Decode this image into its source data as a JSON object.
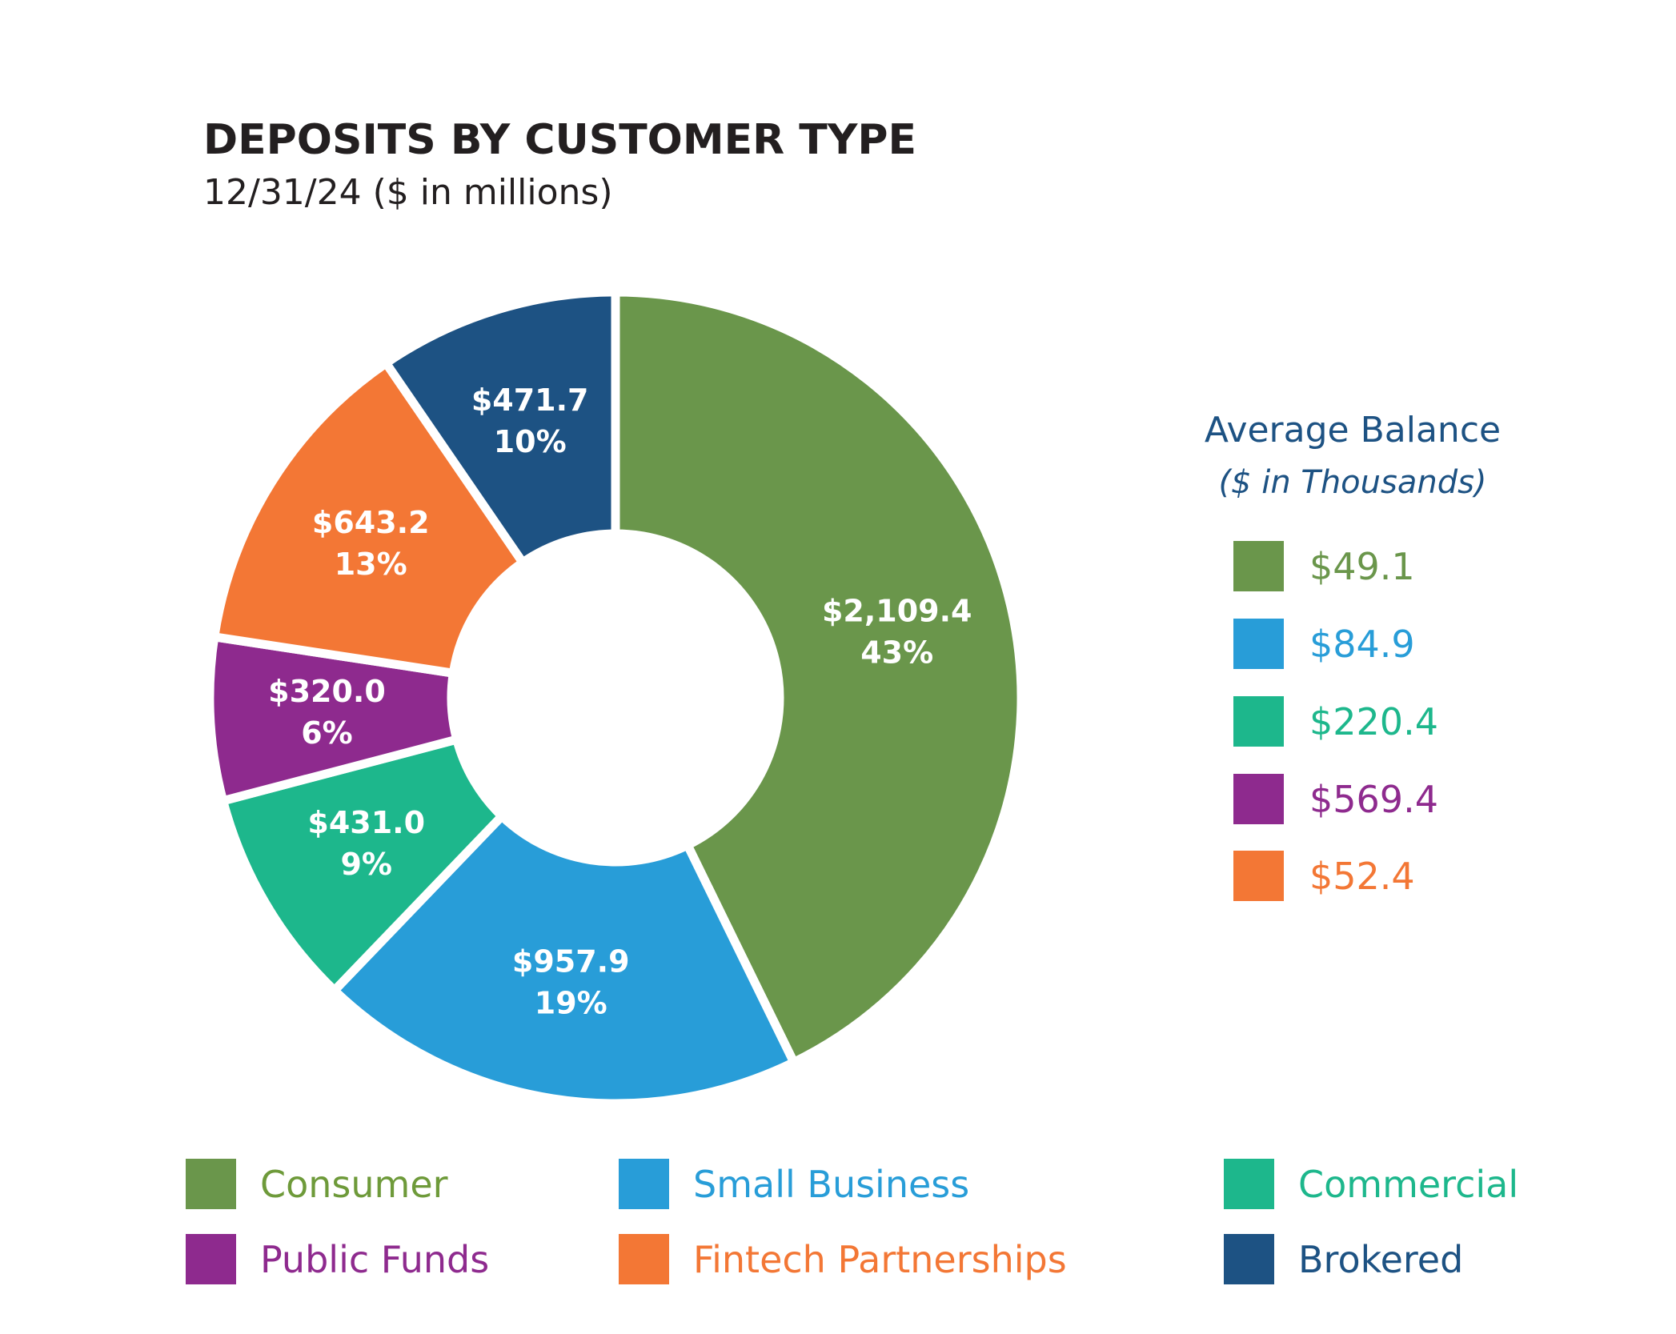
{
  "title": "DEPOSITS BY CUSTOMER TYPE",
  "subtitle": "12/31/24 ($ in millions)",
  "chart_data": {
    "type": "pie",
    "variant": "donut",
    "title": "DEPOSITS BY CUSTOMER TYPE",
    "subtitle": "12/31/24 ($ in millions)",
    "start_angle": "12 o'clock, clockwise",
    "slices": [
      {
        "name": "Consumer",
        "value": 2109.4,
        "value_label": "$2,109.4",
        "percent_label": "43%",
        "color": "#6a964b",
        "text_color": "#6e9a3a"
      },
      {
        "name": "Small Business",
        "value": 957.9,
        "value_label": "$957.9",
        "percent_label": "19%",
        "color": "#289dd8",
        "text_color": "#289dd8"
      },
      {
        "name": "Commercial",
        "value": 431.0,
        "value_label": "$431.0",
        "percent_label": "9%",
        "color": "#1db78c",
        "text_color": "#1db78c"
      },
      {
        "name": "Public Funds",
        "value": 320.0,
        "value_label": "$320.0",
        "percent_label": "6%",
        "color": "#8e2a8e",
        "text_color": "#8e2a8e"
      },
      {
        "name": "Fintech Partnerships",
        "value": 643.2,
        "value_label": "$643.2",
        "percent_label": "13%",
        "color": "#f37735",
        "text_color": "#f37735"
      },
      {
        "name": "Brokered",
        "value": 471.7,
        "value_label": "$471.7",
        "percent_label": "10%",
        "color": "#1d5283",
        "text_color": "#1d5283"
      }
    ],
    "legend_placement": "bottom",
    "average_balance": {
      "title": "Average Balance",
      "subtitle": "($ in Thousands)",
      "items": [
        {
          "category": "Consumer",
          "label": "$49.1",
          "value": 49.1,
          "color": "#6a964b"
        },
        {
          "category": "Small Business",
          "label": "$84.9",
          "value": 84.9,
          "color": "#289dd8"
        },
        {
          "category": "Commercial",
          "label": "$220.4",
          "value": 220.4,
          "color": "#1db78c"
        },
        {
          "category": "Public Funds",
          "label": "$569.4",
          "value": 569.4,
          "color": "#8e2a8e"
        },
        {
          "category": "Fintech Partnerships",
          "label": "$52.4",
          "value": 52.4,
          "color": "#f37735"
        }
      ]
    }
  }
}
